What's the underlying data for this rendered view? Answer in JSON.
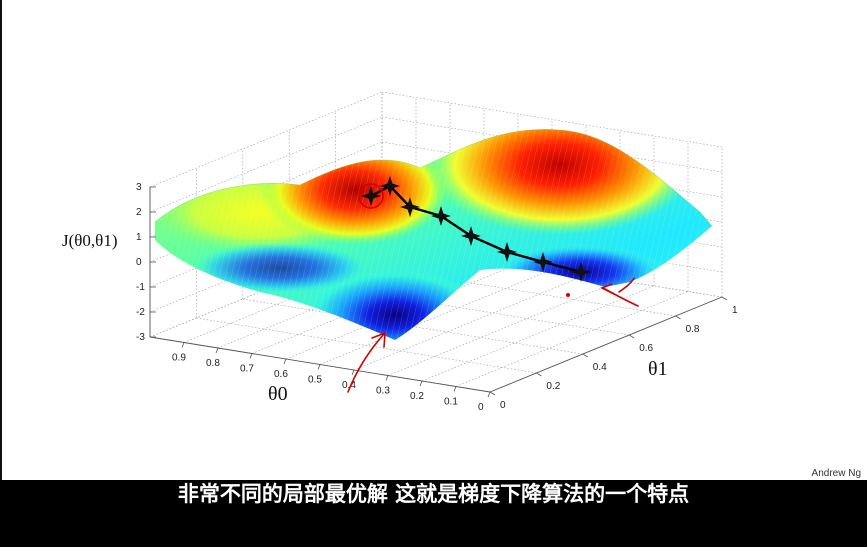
{
  "chart_data": {
    "type": "surface",
    "zlabel": "J(θ0,θ1)",
    "xlabel": "θ0",
    "ylabel": "θ1",
    "z_ticks": [
      "3",
      "2",
      "1",
      "0",
      "-1",
      "-2",
      "-3"
    ],
    "theta0_ticks": [
      "0.9",
      "0.8",
      "0.7",
      "0.6",
      "0.5",
      "0.4",
      "0.3",
      "0.2",
      "0.1",
      "0"
    ],
    "theta1_ticks": [
      "0",
      "0.2",
      "0.4",
      "0.6",
      "0.8",
      "1"
    ],
    "zlim": [
      -3,
      3
    ],
    "theta0_range": [
      0,
      1
    ],
    "theta1_range": [
      0,
      1
    ],
    "colormap": "jet",
    "grid": true,
    "descent_path": {
      "color": "#000000",
      "start_marker_color": "#d40000",
      "points": [
        {
          "theta0": 0.38,
          "theta1": 0.0,
          "J": 1.9
        },
        {
          "theta0": 0.36,
          "theta1": 0.05,
          "J": 1.8
        },
        {
          "theta0": 0.32,
          "theta1": 0.1,
          "J": 1.2
        },
        {
          "theta0": 0.28,
          "theta1": 0.16,
          "J": 0.9
        },
        {
          "theta0": 0.22,
          "theta1": 0.25,
          "J": 0.5
        },
        {
          "theta0": 0.18,
          "theta1": 0.33,
          "J": 0.1
        },
        {
          "theta0": 0.14,
          "theta1": 0.42,
          "J": -0.1
        },
        {
          "theta0": 0.1,
          "theta1": 0.55,
          "J": -0.5
        }
      ]
    },
    "annotation_color": "#d40000"
  },
  "subtitle": "非常不同的局部最优解 这就是梯度下降算法的一个特点",
  "credit": "Andrew Ng"
}
